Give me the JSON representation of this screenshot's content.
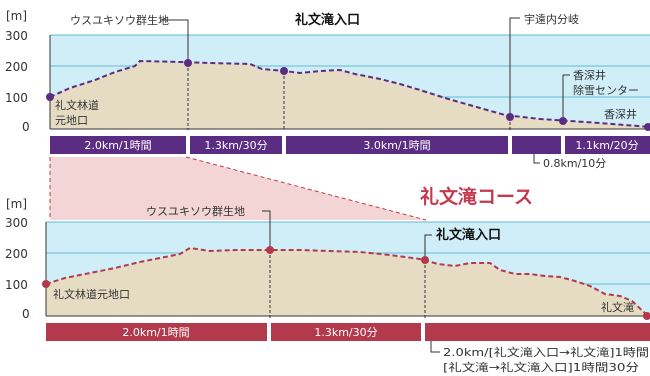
{
  "colors": {
    "sky": "#cfeef8",
    "ground": "#e6dcc3",
    "route_top": "#5b2d82",
    "route_bottom": "#b33a4c",
    "callout_fill": "#f2d5d4",
    "callout_line": "#c5384e",
    "grid": "#66b9d6"
  },
  "course_title": "礼文滝コース",
  "top_profile": {
    "unit": "[m]",
    "y_ticks": [
      "300",
      "200",
      "100",
      "0"
    ],
    "labels": {
      "start": [
        "礼文林道",
        "元地口"
      ],
      "gunseichi": "ウスユキソウ群生地",
      "entrance": "礼文滝入口",
      "uen": "宇遠内分岐",
      "josetsu": [
        "香深井",
        "除雪センター"
      ],
      "end": "香深井"
    },
    "segments": [
      "2.0km/1時間",
      "1.3km/30分",
      "3.0km/1時間",
      "",
      "1.1km/20分"
    ],
    "extra_segment": "0.8km/10分"
  },
  "bottom_profile": {
    "unit": "[m]",
    "y_ticks": [
      "300",
      "200",
      "100",
      "0"
    ],
    "labels": {
      "start": "礼文林道元地口",
      "gunseichi": "ウスユキソウ群生地",
      "entrance": "礼文滝入口",
      "end": "礼文滝"
    },
    "segments": [
      "2.0km/1時間",
      "1.3km/30分",
      ""
    ],
    "note_lines": [
      "2.0km/[礼文滝入口→礼文滝]1時間",
      "[礼文滝→礼文滝入口]1時間30分"
    ]
  }
}
